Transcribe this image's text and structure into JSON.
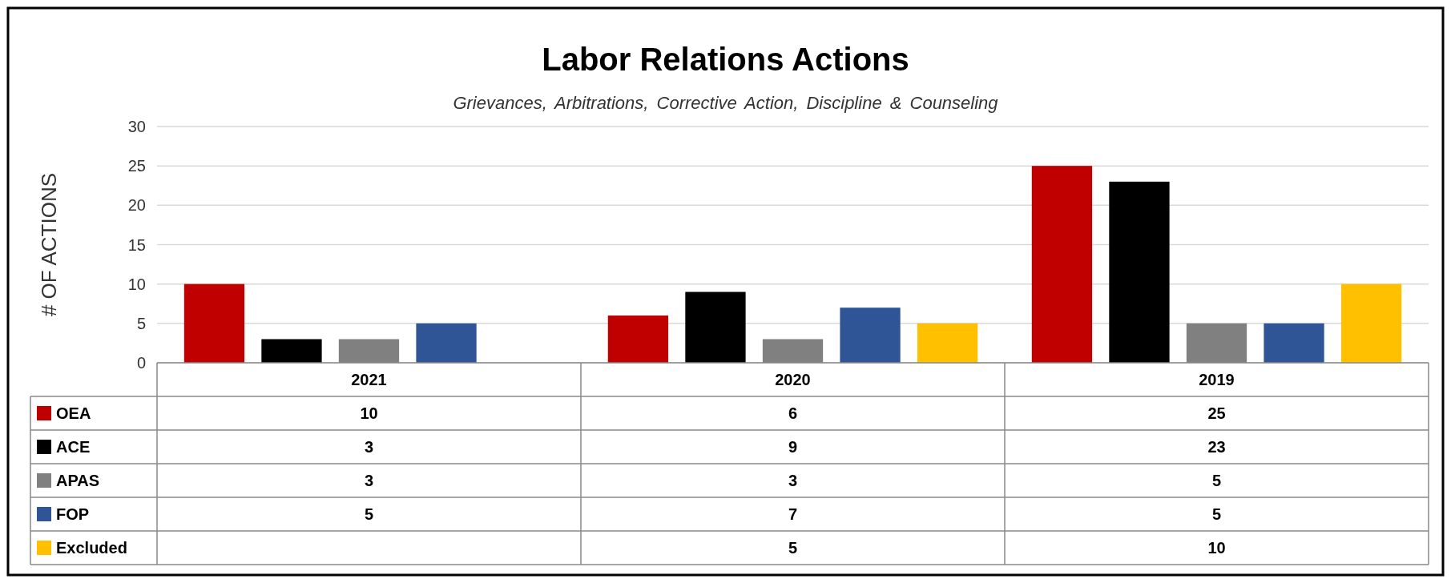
{
  "chart_data": {
    "type": "bar",
    "title": "Labor Relations Actions",
    "subtitle": "Grievances, Arbitrations, Corrective Action, Discipline & Counseling",
    "ylabel": "# OF ACTIONS",
    "categories": [
      "2021",
      "2020",
      "2019"
    ],
    "series": [
      {
        "name": "OEA",
        "color": "#c00000",
        "values": [
          10,
          6,
          25
        ]
      },
      {
        "name": "ACE",
        "color": "#000000",
        "values": [
          3,
          9,
          23
        ]
      },
      {
        "name": "APAS",
        "color": "#808080",
        "values": [
          3,
          3,
          5
        ]
      },
      {
        "name": "FOP",
        "color": "#2f5597",
        "values": [
          5,
          7,
          5
        ]
      },
      {
        "name": "Excluded",
        "color": "#ffc000",
        "values": [
          null,
          5,
          10
        ]
      }
    ],
    "ylim": [
      0,
      30
    ],
    "yticks": [
      0,
      5,
      10,
      15,
      20,
      25,
      30
    ],
    "grid": "y",
    "data_labels": true,
    "legend": "bottom"
  }
}
